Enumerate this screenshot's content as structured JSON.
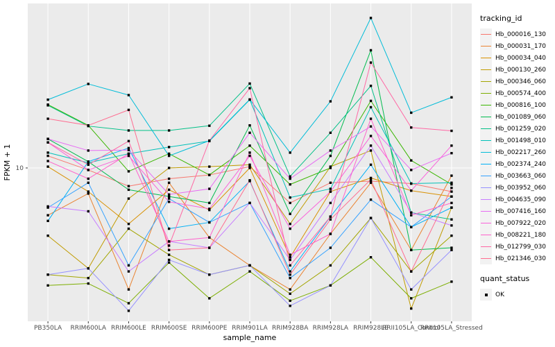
{
  "chart_data": {
    "type": "line",
    "title": "",
    "xlabel": "sample_name",
    "ylabel": "FPKM + 1",
    "y_scale": "log10",
    "ylim": [
      1,
      120
    ],
    "ytick_labels": [
      "10"
    ],
    "ytick_values": [
      10
    ],
    "grid": "white-on-gray",
    "legend_position": "right",
    "legend_title": "tracking_id",
    "quant_legend_title": "quant_status",
    "quant_legend_label": "OK",
    "point_shape": "black-square",
    "panel_background": "#EBEBEB",
    "grid_color": "#FFFFFF",
    "tick_text_color": "#4D4D4D",
    "categories": [
      "PB350LA",
      "RRIM600LA",
      "RRIM600LE",
      "RRIM600SE",
      "RRIM600PE",
      "RRIM901LA",
      "RRIM928BA",
      "RRIM928LA",
      "RRIM928LE",
      "RRII105LA_Control",
      "RRII105LA_Stressed"
    ],
    "series": [
      {
        "name": "Hb_000016_130",
        "color": "#F8766D",
        "values": [
          12.0,
          9.7,
          7.6,
          8.5,
          9.0,
          10.2,
          5.9,
          8.0,
          8.2,
          7.9,
          7.0
        ]
      },
      {
        "name": "Hb_000031_170",
        "color": "#EA8331",
        "values": [
          4.9,
          6.8,
          1.6,
          8.0,
          3.5,
          2.3,
          1.6,
          3.7,
          8.0,
          2.9,
          8.9
        ]
      },
      {
        "name": "Hb_000034_040",
        "color": "#D89000",
        "values": [
          10.2,
          7.0,
          4.3,
          7.2,
          5.3,
          10.0,
          2.6,
          7.0,
          8.6,
          7.1,
          6.5
        ]
      },
      {
        "name": "Hb_000130_260",
        "color": "#C09B00",
        "values": [
          3.6,
          2.2,
          6.3,
          10.0,
          10.2,
          10.5,
          4.3,
          10.2,
          13.0,
          1.2,
          5.5
        ]
      },
      {
        "name": "Hb_000346_060",
        "color": "#A3A500",
        "values": [
          2.0,
          1.9,
          4.0,
          2.7,
          2.0,
          2.3,
          1.5,
          2.3,
          4.7,
          2.1,
          3.6
        ]
      },
      {
        "name": "Hb_000574_400",
        "color": "#7CAE00",
        "values": [
          1.7,
          1.75,
          1.3,
          2.4,
          1.4,
          2.1,
          1.35,
          1.7,
          2.6,
          1.4,
          1.8
        ]
      },
      {
        "name": "Hb_000816_100",
        "color": "#39B600",
        "values": [
          26.0,
          19.0,
          9.5,
          12.4,
          9.0,
          14.0,
          7.8,
          10.0,
          27.5,
          11.2,
          7.8
        ]
      },
      {
        "name": "Hb_001089_060",
        "color": "#00BB4E",
        "values": [
          15.5,
          11.0,
          7.2,
          6.5,
          5.9,
          19.0,
          5.0,
          12.0,
          59.0,
          2.9,
          3.0
        ]
      },
      {
        "name": "Hb_001259_020",
        "color": "#00C087",
        "values": [
          25.7,
          18.8,
          17.6,
          17.6,
          18.9,
          35.7,
          8.8,
          17.0,
          34.5,
          5.1,
          4.6
        ]
      },
      {
        "name": "Hb_001498_010",
        "color": "#00C0B8",
        "values": [
          12.6,
          10.8,
          12.4,
          13.7,
          15.0,
          28.0,
          6.4,
          7.3,
          25.0,
          7.9,
          8.0
        ]
      },
      {
        "name": "Hb_002217_260",
        "color": "#00BCD8",
        "values": [
          28.0,
          35.5,
          30.0,
          12.0,
          15.1,
          28.1,
          12.6,
          27.3,
          96.0,
          23.0,
          29.0
        ]
      },
      {
        "name": "Hb_002374_240",
        "color": "#00B0F6",
        "values": [
          4.5,
          11.0,
          13.5,
          4.0,
          4.4,
          8.2,
          2.1,
          4.8,
          10.5,
          4.1,
          5.5
        ]
      },
      {
        "name": "Hb_003663_060",
        "color": "#35A2FF",
        "values": [
          5.5,
          8.0,
          2.3,
          6.3,
          4.4,
          5.9,
          1.9,
          3.0,
          6.2,
          4.1,
          6.5
        ]
      },
      {
        "name": "Hb_003952_060",
        "color": "#9590FF",
        "values": [
          2.0,
          2.2,
          1.16,
          2.5,
          2.0,
          2.3,
          1.25,
          1.7,
          4.7,
          1.6,
          2.9
        ]
      },
      {
        "name": "Hb_004635_090",
        "color": "#C77CFF",
        "values": [
          5.6,
          5.2,
          2.1,
          3.3,
          3.0,
          5.9,
          2.5,
          5.9,
          14.0,
          5.1,
          4.2
        ]
      },
      {
        "name": "Hb_007416_160",
        "color": "#E76BF3",
        "values": [
          15.5,
          13.0,
          13.1,
          6.7,
          7.3,
          17.0,
          8.5,
          13.0,
          18.7,
          9.7,
          12.5
        ]
      },
      {
        "name": "Hb_007922_020",
        "color": "#FA62DB",
        "values": [
          14.7,
          9.7,
          12.0,
          6.0,
          5.4,
          12.0,
          4.0,
          7.0,
          16.2,
          7.1,
          14.0
        ]
      },
      {
        "name": "Hb_008221_180",
        "color": "#FF61CC",
        "values": [
          11.1,
          8.5,
          12.4,
          3.3,
          3.5,
          12.6,
          2.7,
          3.7,
          21.0,
          4.9,
          5.9
        ]
      },
      {
        "name": "Hb_012799_030",
        "color": "#FF67A4",
        "values": [
          14.7,
          10.5,
          15.0,
          3.1,
          15.1,
          33.3,
          2.3,
          4.8,
          49.0,
          18.4,
          17.5
        ]
      },
      {
        "name": "Hb_021346_030",
        "color": "#FF6C90",
        "values": [
          21.0,
          19.0,
          24.0,
          2.9,
          3.0,
          8.3,
          2.0,
          4.6,
          8.4,
          2.1,
          7.4
        ]
      }
    ]
  }
}
